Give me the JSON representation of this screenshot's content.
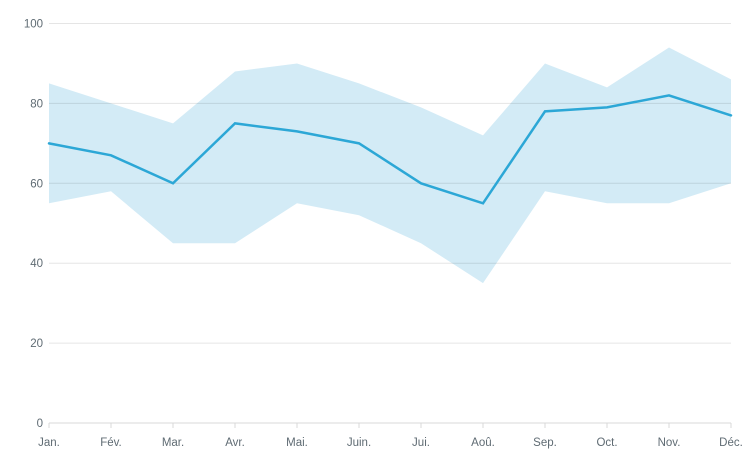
{
  "chart": {
    "background_color": "#ffffff",
    "line_color": "#2ca7d6",
    "band_color": "#d3ebf6",
    "grid_color": "rgba(0,0,0,0.10)",
    "axis_color": "#d9d9d9",
    "label_color": "#5f6b73"
  },
  "chart_data": {
    "type": "line",
    "title": "",
    "xlabel": "",
    "ylabel": "",
    "categories": [
      "Jan.",
      "Fév.",
      "Mar.",
      "Avr.",
      "Mai.",
      "Juin.",
      "Jui.",
      "Aoû.",
      "Sep.",
      "Oct.",
      "Nov.",
      "Déc."
    ],
    "series": [
      {
        "name": "main-line",
        "role": "line",
        "values": [
          70,
          67,
          60,
          75,
          73,
          70,
          60,
          55,
          78,
          79,
          82,
          77
        ]
      },
      {
        "name": "band-upper",
        "role": "area-upper-bound",
        "values": [
          85,
          80,
          75,
          88,
          90,
          85,
          79,
          72,
          90,
          84,
          94,
          86
        ]
      },
      {
        "name": "band-lower",
        "role": "area-lower-bound",
        "values": [
          55,
          58,
          45,
          45,
          55,
          52,
          45,
          35,
          58,
          55,
          55,
          60
        ]
      }
    ],
    "y_ticks": [
      0,
      20,
      40,
      60,
      80,
      100
    ],
    "ylim": [
      0,
      100
    ],
    "grid": true,
    "legend": false
  }
}
